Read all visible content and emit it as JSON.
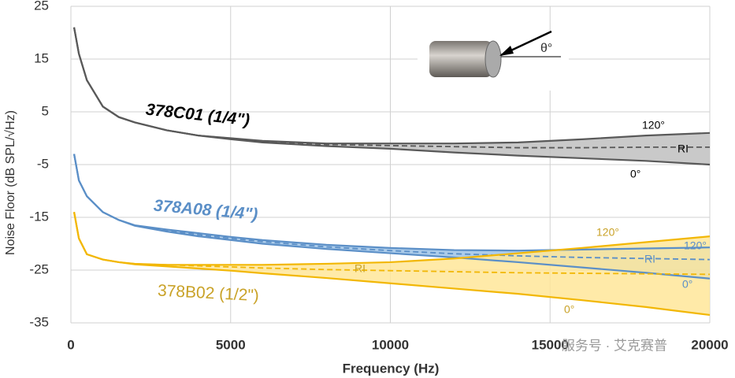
{
  "chart_data": {
    "type": "line",
    "x_label": "Frequency (Hz)",
    "y_label": "Noise Floor (dB SPL/√Hz)",
    "xlim": [
      0,
      20000
    ],
    "xticks": [
      0,
      5000,
      10000,
      15000,
      20000
    ],
    "ylim": [
      -35,
      25
    ],
    "yticks": [
      -35,
      -25,
      -15,
      -5,
      5,
      15,
      25
    ],
    "grid": true,
    "x": [
      100,
      250,
      500,
      1000,
      1500,
      2000,
      3000,
      4000,
      5000,
      6000,
      8000,
      10000,
      12000,
      14000,
      16000,
      18000,
      20000
    ],
    "groups": [
      {
        "name": "378C01 (1/4\")",
        "color": "#595959",
        "fill": "#bfbfbf",
        "label_color": "#000000",
        "series": [
          {
            "name": "120°",
            "values": [
              21,
              16,
              11,
              6,
              4,
              3,
              1.5,
              0.5,
              0,
              -0.5,
              -1,
              -1,
              -1,
              -0.8,
              -0.2,
              0.5,
              1
            ]
          },
          {
            "name": "RI",
            "values": [
              21,
              16,
              11,
              6,
              4,
              3,
              1.5,
              0.5,
              0,
              -0.6,
              -1.2,
              -1.4,
              -1.6,
              -1.8,
              -1.8,
              -1.7,
              -1.7
            ]
          },
          {
            "name": "0°",
            "values": [
              21,
              16,
              11,
              6,
              4,
              3,
              1.5,
              0.5,
              -0.2,
              -0.8,
              -1.5,
              -2,
              -2.7,
              -3.3,
              -3.8,
              -4.3,
              -5
            ]
          }
        ]
      },
      {
        "name": "378A08 (1/4\")",
        "color": "#5b8fc7",
        "fill": "#9dc3e6",
        "label_color": "#5b8fc7",
        "series": [
          {
            "name": "120°",
            "values": [
              -3,
              -8,
              -11,
              -14,
              -15.5,
              -16.5,
              -17.3,
              -18,
              -18.7,
              -19.3,
              -20.2,
              -20.8,
              -21.2,
              -21.3,
              -21.1,
              -20.9,
              -20.7
            ]
          },
          {
            "name": "RI",
            "values": [
              -3,
              -8,
              -11,
              -14,
              -15.5,
              -16.5,
              -17.5,
              -18.3,
              -19,
              -19.6,
              -20.6,
              -21.3,
              -21.9,
              -22.3,
              -22.6,
              -22.8,
              -23
            ]
          },
          {
            "name": "0°",
            "values": [
              -3,
              -8,
              -11,
              -14,
              -15.5,
              -16.6,
              -17.7,
              -18.6,
              -19.3,
              -20,
              -21,
              -21.8,
              -22.6,
              -23.5,
              -24.5,
              -25.5,
              -26.6
            ]
          }
        ]
      },
      {
        "name": "378B02 (1/2\")",
        "color": "#f2b705",
        "fill": "#ffe699",
        "label_color": "#c9a227",
        "series": [
          {
            "name": "120°",
            "values": [
              -14,
              -19,
              -22,
              -23,
              -23.5,
              -23.8,
              -24,
              -24,
              -24,
              -24,
              -23.8,
              -23.5,
              -22.8,
              -21.8,
              -20.8,
              -19.7,
              -18.6
            ]
          },
          {
            "name": "RI",
            "values": [
              -14,
              -19,
              -22,
              -23,
              -23.5,
              -23.8,
              -24,
              -24.2,
              -24.4,
              -24.6,
              -24.9,
              -25.1,
              -25.3,
              -25.5,
              -25.6,
              -25.7,
              -25.8
            ]
          },
          {
            "name": "0°",
            "values": [
              -14,
              -19,
              -22,
              -23,
              -23.5,
              -23.9,
              -24.3,
              -24.7,
              -25.1,
              -25.6,
              -26.5,
              -27.5,
              -28.5,
              -29.5,
              -30.7,
              -32,
              -33.5
            ]
          }
        ]
      }
    ],
    "angle_label": "θ°",
    "watermark": "服务号 · 艾克赛普"
  }
}
